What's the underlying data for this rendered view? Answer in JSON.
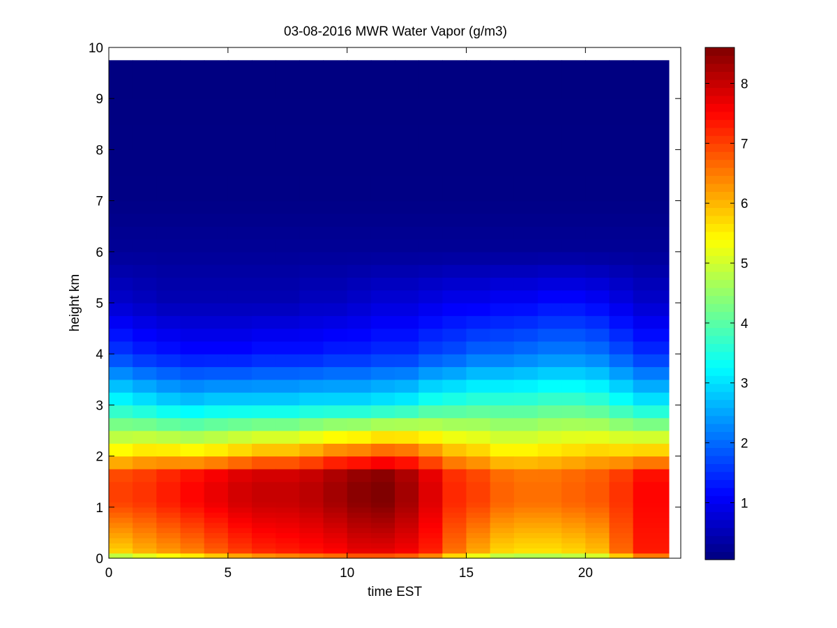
{
  "chart_data": {
    "type": "heatmap",
    "title": "03-08-2016 MWR Water Vapor (g/m3)",
    "xlabel": "time EST",
    "ylabel": "height km",
    "xlim": [
      0,
      24
    ],
    "ylim": [
      0,
      10
    ],
    "xticks": [
      0,
      5,
      10,
      15,
      20
    ],
    "yticks": [
      0,
      1,
      2,
      3,
      4,
      5,
      6,
      7,
      8,
      9,
      10
    ],
    "colorbar": {
      "colormap": "jet",
      "range": [
        0.05,
        8.6
      ],
      "ticks": [
        1,
        2,
        3,
        4,
        5,
        6,
        7,
        8
      ]
    },
    "x_edges": [
      0,
      1,
      2,
      3,
      4,
      5,
      6,
      7,
      8,
      9,
      10,
      11,
      12,
      13,
      14,
      15,
      16,
      17,
      18,
      19,
      20,
      21,
      22,
      23.5
    ],
    "y_levels_km": [
      0,
      0.1,
      0.2,
      0.3,
      0.4,
      0.5,
      0.6,
      0.7,
      0.8,
      0.9,
      1.0,
      1.1,
      1.25,
      1.5,
      1.75,
      2.0,
      2.25,
      2.5,
      2.75,
      3.0,
      3.25,
      3.5,
      3.75,
      4.0,
      4.25,
      4.5,
      4.75,
      5.0,
      5.25,
      5.5,
      5.75,
      6.0,
      6.25,
      6.5,
      6.75,
      7.0,
      7.5,
      8.0,
      8.5,
      9.0,
      9.75
    ],
    "profiles_per_interval": [
      {
        "sfc": 5.6,
        "peak": 7.0,
        "z2": 5.7,
        "z3": 3.4,
        "z4": 1.6,
        "z5": 0.7
      },
      {
        "sfc": 5.9,
        "peak": 7.1,
        "z2": 5.9,
        "z3": 3.2,
        "z4": 1.4,
        "z5": 0.6
      },
      {
        "sfc": 6.1,
        "peak": 7.3,
        "z2": 5.9,
        "z3": 3.0,
        "z4": 1.3,
        "z5": 0.5
      },
      {
        "sfc": 6.3,
        "peak": 7.5,
        "z2": 5.8,
        "z3": 2.9,
        "z4": 1.2,
        "z5": 0.5
      },
      {
        "sfc": 6.6,
        "peak": 7.7,
        "z2": 5.9,
        "z3": 3.0,
        "z4": 1.2,
        "z5": 0.5
      },
      {
        "sfc": 6.9,
        "peak": 7.9,
        "z2": 6.1,
        "z3": 3.0,
        "z4": 1.2,
        "z5": 0.5
      },
      {
        "sfc": 7.1,
        "peak": 8.0,
        "z2": 6.3,
        "z3": 3.0,
        "z4": 1.3,
        "z5": 0.5
      },
      {
        "sfc": 7.2,
        "peak": 8.0,
        "z2": 6.3,
        "z3": 3.0,
        "z4": 1.3,
        "z5": 0.5
      },
      {
        "sfc": 7.3,
        "peak": 8.1,
        "z2": 6.5,
        "z3": 3.1,
        "z4": 1.3,
        "z5": 0.6
      },
      {
        "sfc": 7.4,
        "peak": 8.3,
        "z2": 6.8,
        "z3": 3.1,
        "z4": 1.4,
        "z5": 0.6
      },
      {
        "sfc": 7.6,
        "peak": 8.5,
        "z2": 6.9,
        "z3": 3.1,
        "z4": 1.4,
        "z5": 0.7
      },
      {
        "sfc": 7.6,
        "peak": 8.6,
        "z2": 7.1,
        "z3": 3.2,
        "z4": 1.5,
        "z5": 0.8
      },
      {
        "sfc": 7.5,
        "peak": 8.3,
        "z2": 7.0,
        "z3": 3.3,
        "z4": 1.5,
        "z5": 0.8
      },
      {
        "sfc": 7.2,
        "peak": 7.8,
        "z2": 6.6,
        "z3": 3.6,
        "z4": 1.7,
        "z5": 0.9
      },
      {
        "sfc": 6.5,
        "peak": 7.2,
        "z2": 6.2,
        "z3": 3.7,
        "z4": 1.8,
        "z5": 1.0
      },
      {
        "sfc": 6.0,
        "peak": 7.0,
        "z2": 6.0,
        "z3": 3.8,
        "z4": 2.0,
        "z5": 1.0
      },
      {
        "sfc": 5.6,
        "peak": 6.7,
        "z2": 5.7,
        "z3": 3.8,
        "z4": 2.0,
        "z5": 1.1
      },
      {
        "sfc": 5.5,
        "peak": 6.6,
        "z2": 5.7,
        "z3": 3.8,
        "z4": 2.1,
        "z5": 1.1
      },
      {
        "sfc": 5.5,
        "peak": 6.6,
        "z2": 5.8,
        "z3": 3.9,
        "z4": 2.2,
        "z5": 1.2
      },
      {
        "sfc": 5.6,
        "peak": 6.7,
        "z2": 5.9,
        "z3": 3.9,
        "z4": 2.2,
        "z5": 1.2
      },
      {
        "sfc": 5.8,
        "peak": 6.8,
        "z2": 6.0,
        "z3": 3.8,
        "z4": 2.1,
        "z5": 1.1
      },
      {
        "sfc": 6.6,
        "peak": 7.1,
        "z2": 6.0,
        "z3": 3.5,
        "z4": 1.8,
        "z5": 0.9
      },
      {
        "sfc": 7.3,
        "peak": 7.5,
        "z2": 6.1,
        "z3": 3.2,
        "z4": 1.5,
        "z5": 0.7
      }
    ]
  }
}
